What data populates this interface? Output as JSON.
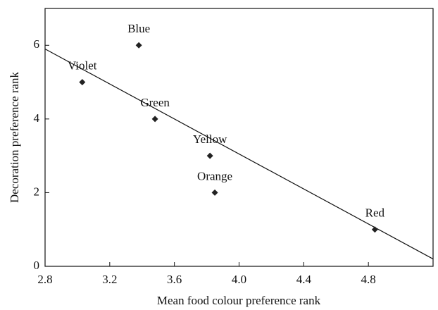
{
  "chart_data": {
    "type": "scatter",
    "x_label": "Mean food colour preference rank",
    "y_label": "Decoration preference rank",
    "labels": [
      "Violet",
      "Blue",
      "Green",
      "Yellow",
      "Orange",
      "Red"
    ],
    "x": [
      3.03,
      3.38,
      3.48,
      3.82,
      3.85,
      4.84
    ],
    "y": [
      5,
      6,
      4,
      3,
      2,
      1
    ],
    "color": "#222222",
    "trendline": {
      "x": [
        2.8,
        5.2
      ],
      "y": [
        5.9,
        0.2
      ]
    },
    "xlim": [
      2.8,
      5.2
    ],
    "xticks": [
      2.8,
      3.2,
      3.6,
      {
        "value": 4,
        "label": "4.0"
      },
      4.4,
      4.8
    ],
    "ylim": [
      0,
      7
    ],
    "yticks": [
      0,
      2,
      4,
      6
    ],
    "grid": false
  }
}
